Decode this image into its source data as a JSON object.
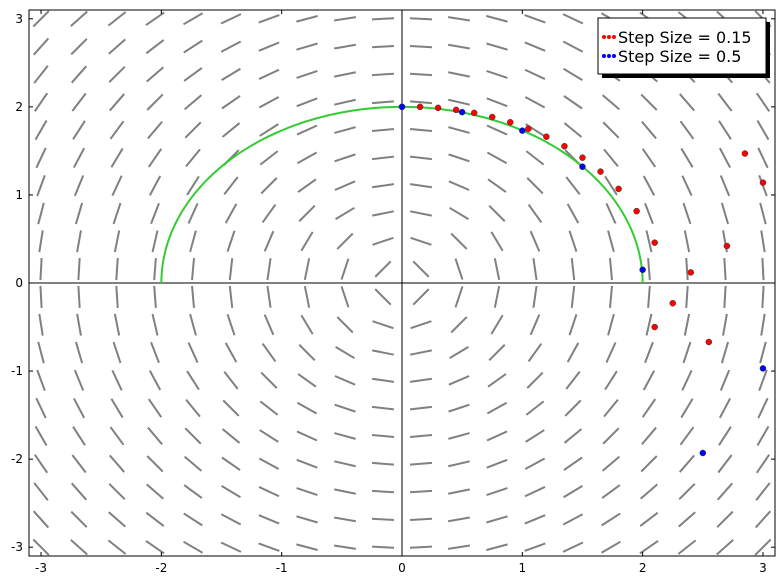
{
  "chart_data": {
    "type": "scatter",
    "title": "",
    "xlabel": "",
    "ylabel": "",
    "xlim": [
      -3.1,
      3.1
    ],
    "ylim": [
      -3.1,
      3.1
    ],
    "x_ticks": [
      -3,
      -2,
      -1,
      0,
      1,
      2,
      3
    ],
    "y_ticks": [
      -3,
      -2,
      -1,
      0,
      1,
      2,
      3
    ],
    "x_tick_labels": [
      "-3",
      "-2",
      "-1",
      "0",
      "1",
      "2",
      "3"
    ],
    "y_tick_labels": [
      "-3",
      "-2",
      "-1",
      "0",
      "1",
      "2",
      "3"
    ],
    "grid": false,
    "axes_through_origin": true,
    "legend_position": "top-right",
    "slope_field": {
      "x_range": [
        -3,
        3
      ],
      "y_range": [
        -3,
        3
      ],
      "count": 20,
      "color": "#808080",
      "direction": "dy/dx = -x/y"
    },
    "curve": {
      "kind": "upper semicircle",
      "center": [
        0,
        0
      ],
      "radius": 2,
      "x_range": [
        -2,
        2
      ],
      "color": "#33cc33"
    },
    "series": [
      {
        "name": "Step Size = 0.15",
        "color": "#ff0000",
        "points": [
          [
            0,
            2
          ],
          [
            0.15,
            2.0
          ],
          [
            0.3,
            1.989
          ],
          [
            0.45,
            1.966
          ],
          [
            0.6,
            1.932
          ],
          [
            0.75,
            1.885
          ],
          [
            0.9,
            1.825
          ],
          [
            1.05,
            1.751
          ],
          [
            1.2,
            1.661
          ],
          [
            1.35,
            1.553
          ],
          [
            1.5,
            1.423
          ],
          [
            1.65,
            1.265
          ],
          [
            1.8,
            1.069
          ],
          [
            1.95,
            0.816
          ],
          [
            2.1,
            0.458
          ],
          [
            2.25,
            -0.23
          ],
          [
            2.4,
            0.12
          ],
          [
            2.55,
            -0.67
          ],
          [
            2.7,
            0.42
          ],
          [
            2.85,
            1.47
          ],
          [
            3.0,
            1.14
          ],
          [
            2.1,
            -0.5
          ]
        ]
      },
      {
        "name": "Step Size = 0.5",
        "color": "#0000ff",
        "points": [
          [
            0,
            2
          ],
          [
            0.5,
            1.94
          ],
          [
            1.0,
            1.73
          ],
          [
            1.5,
            1.32
          ],
          [
            2.0,
            0.15
          ],
          [
            2.5,
            -1.93
          ],
          [
            3.0,
            -0.97
          ]
        ]
      }
    ]
  }
}
